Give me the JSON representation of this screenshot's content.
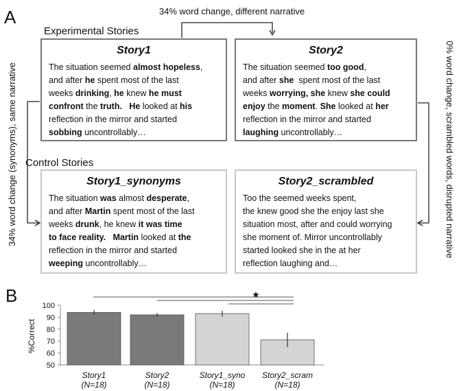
{
  "panel_a": {
    "label": "A",
    "top_note": "34% word change, different narrative",
    "left_note": "34% word change (synonyms), same narrative",
    "right_note": "0% word change, scrambled words, disrupted narrative",
    "experimental_heading": "Experimental Stories",
    "control_heading": "Control Stories",
    "stories": [
      {
        "title": "Story1",
        "lines": [
          [
            {
              "text": "The situation seemed "
            },
            {
              "text": "almost hopeless",
              "bold": true
            },
            {
              "text": ","
            }
          ],
          [
            {
              "text": "and after "
            },
            {
              "text": "he",
              "bold": true
            },
            {
              "text": " spent most of the last"
            }
          ],
          [
            {
              "text": "weeks "
            },
            {
              "text": "drinking",
              "bold": true
            },
            {
              "text": ", "
            },
            {
              "text": "he",
              "bold": true
            },
            {
              "text": " knew "
            },
            {
              "text": "he must",
              "bold": true
            }
          ],
          [
            {
              "text": "confront",
              "bold": true
            },
            {
              "text": " the "
            },
            {
              "text": "truth.",
              "bold": true
            },
            {
              "text": "   "
            },
            {
              "text": "He",
              "bold": true
            },
            {
              "text": " looked at "
            },
            {
              "text": "his",
              "bold": true
            }
          ],
          [
            {
              "text": "reflection in the mirror and started"
            }
          ],
          [
            {
              "text": "sobbing",
              "bold": true
            },
            {
              "text": " uncontrollably…"
            }
          ]
        ]
      },
      {
        "title": "Story2",
        "lines": [
          [
            {
              "text": "The situation seemed "
            },
            {
              "text": "too good",
              "bold": true
            },
            {
              "text": ","
            }
          ],
          [
            {
              "text": "and after "
            },
            {
              "text": "she",
              "bold": true
            },
            {
              "text": "  spent most of the last"
            }
          ],
          [
            {
              "text": "weeks "
            },
            {
              "text": "worrying, she",
              "bold": true
            },
            {
              "text": " knew "
            },
            {
              "text": "she could",
              "bold": true
            }
          ],
          [
            {
              "text": "enjoy",
              "bold": true
            },
            {
              "text": " the "
            },
            {
              "text": "moment",
              "bold": true
            },
            {
              "text": ". "
            },
            {
              "text": "She",
              "bold": true
            },
            {
              "text": " looked at "
            },
            {
              "text": "her",
              "bold": true
            }
          ],
          [
            {
              "text": "reflection in the mirror and started"
            }
          ],
          [
            {
              "text": "laughing",
              "bold": true
            },
            {
              "text": " uncontrollably…"
            }
          ]
        ]
      },
      {
        "title": "Story1_synonyms",
        "lines": [
          [
            {
              "text": "The situation "
            },
            {
              "text": "was",
              "bold": true
            },
            {
              "text": " almost "
            },
            {
              "text": "desperate",
              "bold": true
            },
            {
              "text": ","
            }
          ],
          [
            {
              "text": "and after "
            },
            {
              "text": "Martin",
              "bold": true
            },
            {
              "text": " spent most of the last"
            }
          ],
          [
            {
              "text": "weeks "
            },
            {
              "text": "drunk",
              "bold": true
            },
            {
              "text": ", he knew "
            },
            {
              "text": "it was time",
              "bold": true
            }
          ],
          [
            {
              "text": "to face reality.",
              "bold": true
            },
            {
              "text": "   "
            },
            {
              "text": "Martin",
              "bold": true
            },
            {
              "text": " looked at "
            },
            {
              "text": "the",
              "bold": true
            }
          ],
          [
            {
              "text": "reflection in the mirror and started"
            }
          ],
          [
            {
              "text": "weeping",
              "bold": true
            },
            {
              "text": " uncontrollably…"
            }
          ]
        ]
      },
      {
        "title": "Story2_scrambled",
        "lines": [
          [
            {
              "text": "Too the seemed weeks spent,"
            }
          ],
          [
            {
              "text": "the knew good she the enjoy last she"
            }
          ],
          [
            {
              "text": "situation most, after and could worrying"
            }
          ],
          [
            {
              "text": "she moment of. Mirror uncontrollably"
            }
          ],
          [
            {
              "text": "started looked she in the at her"
            }
          ],
          [
            {
              "text": "reflection laughing and…"
            }
          ]
        ]
      }
    ]
  },
  "chart_data": {
    "type": "bar",
    "panel_label": "B",
    "y_label": "%Correct",
    "categories": [
      "Story1",
      "Story2",
      "Story1_syno",
      "Story2_scram"
    ],
    "sample_sizes": [
      "(N=18)",
      "(N=18)",
      "(N=18)",
      "(N=18)"
    ],
    "values": [
      94,
      92,
      93,
      71
    ],
    "errors": [
      2,
      1.5,
      2.5,
      6
    ],
    "colors": [
      "#7a7a7a",
      "#7a7a7a",
      "#d4d4d4",
      "#d4d4d4"
    ],
    "ylim": [
      50,
      100
    ],
    "yticks": [
      50,
      60,
      70,
      80,
      90,
      100
    ],
    "significance_marker": "★"
  }
}
